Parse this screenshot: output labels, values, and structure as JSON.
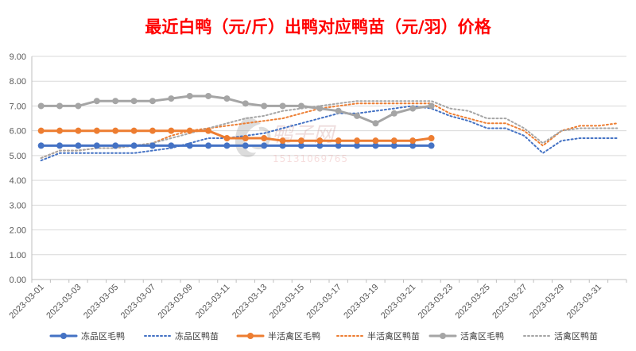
{
  "chart_data": {
    "type": "line",
    "title": "最近白鸭（元/斤）出鸭对应鸭苗（元/羽）价格",
    "title_color": "#ff0000",
    "xlabel": "",
    "ylabel": "",
    "ylim": [
      0,
      9
    ],
    "y_ticks": [
      "0.00",
      "1.00",
      "2.00",
      "3.00",
      "4.00",
      "5.00",
      "6.00",
      "7.00",
      "8.00",
      "9.00"
    ],
    "x": [
      "2023-03-01",
      "2023-03-02",
      "2023-03-03",
      "2023-03-04",
      "2023-03-05",
      "2023-03-06",
      "2023-03-07",
      "2023-03-08",
      "2023-03-09",
      "2023-03-10",
      "2023-03-11",
      "2023-03-12",
      "2023-03-13",
      "2023-03-14",
      "2023-03-15",
      "2023-03-16",
      "2023-03-17",
      "2023-03-18",
      "2023-03-19",
      "2023-03-20",
      "2023-03-21",
      "2023-03-22",
      "2023-03-23",
      "2023-03-24",
      "2023-03-25",
      "2023-03-26",
      "2023-03-27",
      "2023-03-28",
      "2023-03-29",
      "2023-03-30",
      "2023-03-31",
      "2023-04-01"
    ],
    "x_tick_labels": [
      "2023-03-01",
      "2023-03-03",
      "2023-03-05",
      "2023-03-07",
      "2023-03-09",
      "2023-03-11",
      "2023-03-13",
      "2023-03-15",
      "2023-03-17",
      "2023-03-19",
      "2023-03-21",
      "2023-03-23",
      "2023-03-25",
      "2023-03-27",
      "2023-03-29",
      "2023-03-31"
    ],
    "grid": true,
    "legend_position": "bottom",
    "series": [
      {
        "name": "冻品区毛鸭",
        "color": "#4472c4",
        "style": "solid",
        "markers": true,
        "values": [
          5.4,
          5.4,
          5.4,
          5.4,
          5.4,
          5.4,
          5.4,
          5.4,
          5.4,
          5.4,
          5.4,
          5.4,
          5.4,
          5.4,
          5.4,
          5.4,
          5.4,
          5.4,
          5.4,
          5.4,
          5.4,
          5.4,
          null,
          null,
          null,
          null,
          null,
          null,
          null,
          null,
          null,
          null
        ]
      },
      {
        "name": "冻品区鸭苗",
        "color": "#4472c4",
        "style": "dotted",
        "markers": false,
        "values": [
          4.8,
          5.1,
          5.1,
          5.1,
          5.1,
          5.1,
          5.2,
          5.3,
          5.5,
          5.7,
          5.7,
          5.8,
          5.9,
          6.1,
          6.3,
          6.5,
          6.7,
          6.7,
          6.8,
          6.9,
          7.0,
          6.9,
          6.6,
          6.4,
          6.1,
          6.1,
          5.8,
          5.1,
          5.6,
          5.7,
          5.7,
          5.7
        ]
      },
      {
        "name": "半活禽区毛鸭",
        "color": "#ed7d31",
        "style": "solid",
        "markers": true,
        "values": [
          6.0,
          6.0,
          6.0,
          6.0,
          6.0,
          6.0,
          6.0,
          6.0,
          6.0,
          6.0,
          5.7,
          5.7,
          5.7,
          5.6,
          5.6,
          5.6,
          5.6,
          5.6,
          5.6,
          5.6,
          5.6,
          5.7,
          null,
          null,
          null,
          null,
          null,
          null,
          null,
          null,
          null,
          null
        ]
      },
      {
        "name": "半活禽区鸭苗",
        "color": "#ed7d31",
        "style": "dotted",
        "markers": false,
        "values": [
          4.9,
          5.2,
          5.2,
          5.3,
          5.3,
          5.4,
          5.5,
          5.8,
          6.0,
          6.1,
          6.2,
          6.3,
          6.4,
          6.5,
          6.7,
          6.9,
          7.0,
          7.1,
          7.1,
          7.1,
          7.1,
          7.1,
          6.7,
          6.5,
          6.3,
          6.3,
          6.0,
          5.4,
          6.0,
          6.2,
          6.2,
          6.3
        ]
      },
      {
        "name": "活禽区毛鸭",
        "color": "#a5a5a5",
        "style": "solid",
        "markers": true,
        "values": [
          7.0,
          7.0,
          7.0,
          7.2,
          7.2,
          7.2,
          7.2,
          7.3,
          7.4,
          7.4,
          7.3,
          7.1,
          7.0,
          7.0,
          7.0,
          6.9,
          6.8,
          6.6,
          6.3,
          6.7,
          6.9,
          7.0,
          null,
          null,
          null,
          null,
          null,
          null,
          null,
          null,
          null,
          null
        ]
      },
      {
        "name": "活禽区鸭苗",
        "color": "#a5a5a5",
        "style": "dotted",
        "markers": false,
        "values": [
          4.9,
          5.2,
          5.2,
          5.3,
          5.3,
          5.4,
          5.5,
          5.7,
          5.9,
          6.1,
          6.3,
          6.5,
          6.6,
          6.8,
          6.9,
          7.0,
          7.1,
          7.2,
          7.2,
          7.2,
          7.2,
          7.2,
          6.9,
          6.8,
          6.5,
          6.5,
          6.1,
          5.5,
          6.0,
          6.1,
          6.1,
          6.1
        ]
      }
    ]
  },
  "watermark": {
    "brand": "鸭子网",
    "phone": "15131069765"
  }
}
